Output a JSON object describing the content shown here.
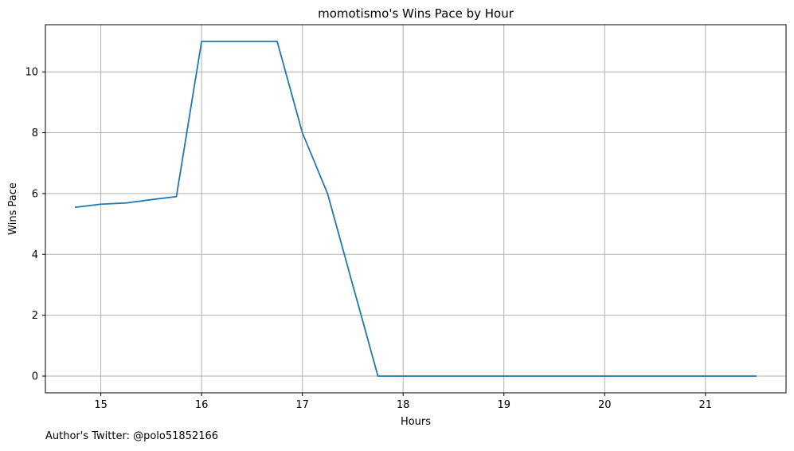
{
  "chart_data": {
    "type": "line",
    "title": "momotismo's Wins Pace by Hour",
    "xlabel": "Hours",
    "ylabel": "Wins Pace",
    "xlim": [
      14.45,
      21.8
    ],
    "ylim": [
      -0.55,
      11.55
    ],
    "xticks": [
      15,
      16,
      17,
      18,
      19,
      20,
      21
    ],
    "yticks": [
      0,
      2,
      4,
      6,
      8,
      10
    ],
    "grid": true,
    "line_color": "#1f77b4",
    "series": [
      {
        "x": [
          14.75,
          15.0,
          15.25,
          15.5,
          15.75,
          16.0,
          16.25,
          16.5,
          16.75,
          17.0,
          17.25,
          17.5,
          17.75,
          18.0,
          18.25,
          18.5,
          18.75,
          19.0,
          19.25,
          19.5,
          19.75,
          20.0,
          20.25,
          20.5,
          20.75,
          21.0,
          21.25,
          21.5
        ],
        "y": [
          5.55,
          5.65,
          5.69,
          5.8,
          5.9,
          11.0,
          11.0,
          11.0,
          11.0,
          8.0,
          6.0,
          3.0,
          0,
          0,
          0,
          0,
          0,
          0,
          0,
          0,
          0,
          0,
          0,
          0,
          0,
          0,
          0,
          0
        ]
      }
    ]
  },
  "footer": {
    "credit": "Author's Twitter: @polo51852166"
  }
}
